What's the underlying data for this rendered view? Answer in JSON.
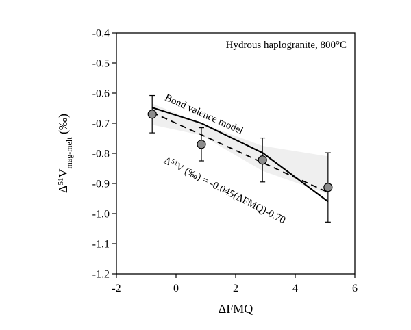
{
  "chart_data": {
    "type": "scatter",
    "title": "",
    "annotation_box": "Hydrous haplogranite, 800°C",
    "xlabel": "ΔFMQ",
    "ylabel_parts": {
      "delta": "Δ",
      "sup": "51",
      "main": "V",
      "sub": "mag-melt",
      "unit": " (‰)"
    },
    "xlim": [
      -2,
      6
    ],
    "ylim": [
      -1.2,
      -0.4
    ],
    "x_ticks": [
      -2,
      0,
      2,
      4,
      6
    ],
    "y_ticks": [
      -0.4,
      -0.5,
      -0.6,
      -0.7,
      -0.8,
      -0.9,
      -1.0,
      -1.1,
      -1.2
    ],
    "x_tick_labels": [
      "-2",
      "0",
      "2",
      "4",
      "6"
    ],
    "y_tick_labels": [
      "-0.4",
      "-0.5",
      "-0.6",
      "-0.7",
      "-0.8",
      "-0.9",
      "-1.0",
      "-1.1",
      "-1.2"
    ],
    "grid": false,
    "points": [
      {
        "x": -0.8,
        "y": -0.67,
        "err": 0.062
      },
      {
        "x": 0.85,
        "y": -0.77,
        "err": 0.055
      },
      {
        "x": 2.9,
        "y": -0.822,
        "err": 0.073
      },
      {
        "x": 5.1,
        "y": -0.913,
        "err": 0.115
      }
    ],
    "bond_valence_model": {
      "label": "Bond valence model",
      "x": [
        -0.8,
        0.85,
        2.9,
        5.1
      ],
      "y": [
        -0.648,
        -0.7,
        -0.798,
        -0.96
      ]
    },
    "fit_line": {
      "label_delta": "Δ",
      "label_sup": "51",
      "label_rest": "V (‰) = -0.045(ΔFMQ)-0.70",
      "slope": -0.045,
      "intercept": -0.7,
      "x_range": [
        -0.8,
        5.1
      ]
    },
    "confidence_band": {
      "x": [
        -0.8,
        0.85,
        2.9,
        5.1
      ],
      "upper": [
        -0.635,
        -0.7,
        -0.775,
        -0.81
      ],
      "lower": [
        -0.705,
        -0.74,
        -0.858,
        -0.935
      ]
    },
    "colors": {
      "marker_fill": "#8c8c8c",
      "band_fill": "#efefef",
      "line": "#000000"
    }
  }
}
